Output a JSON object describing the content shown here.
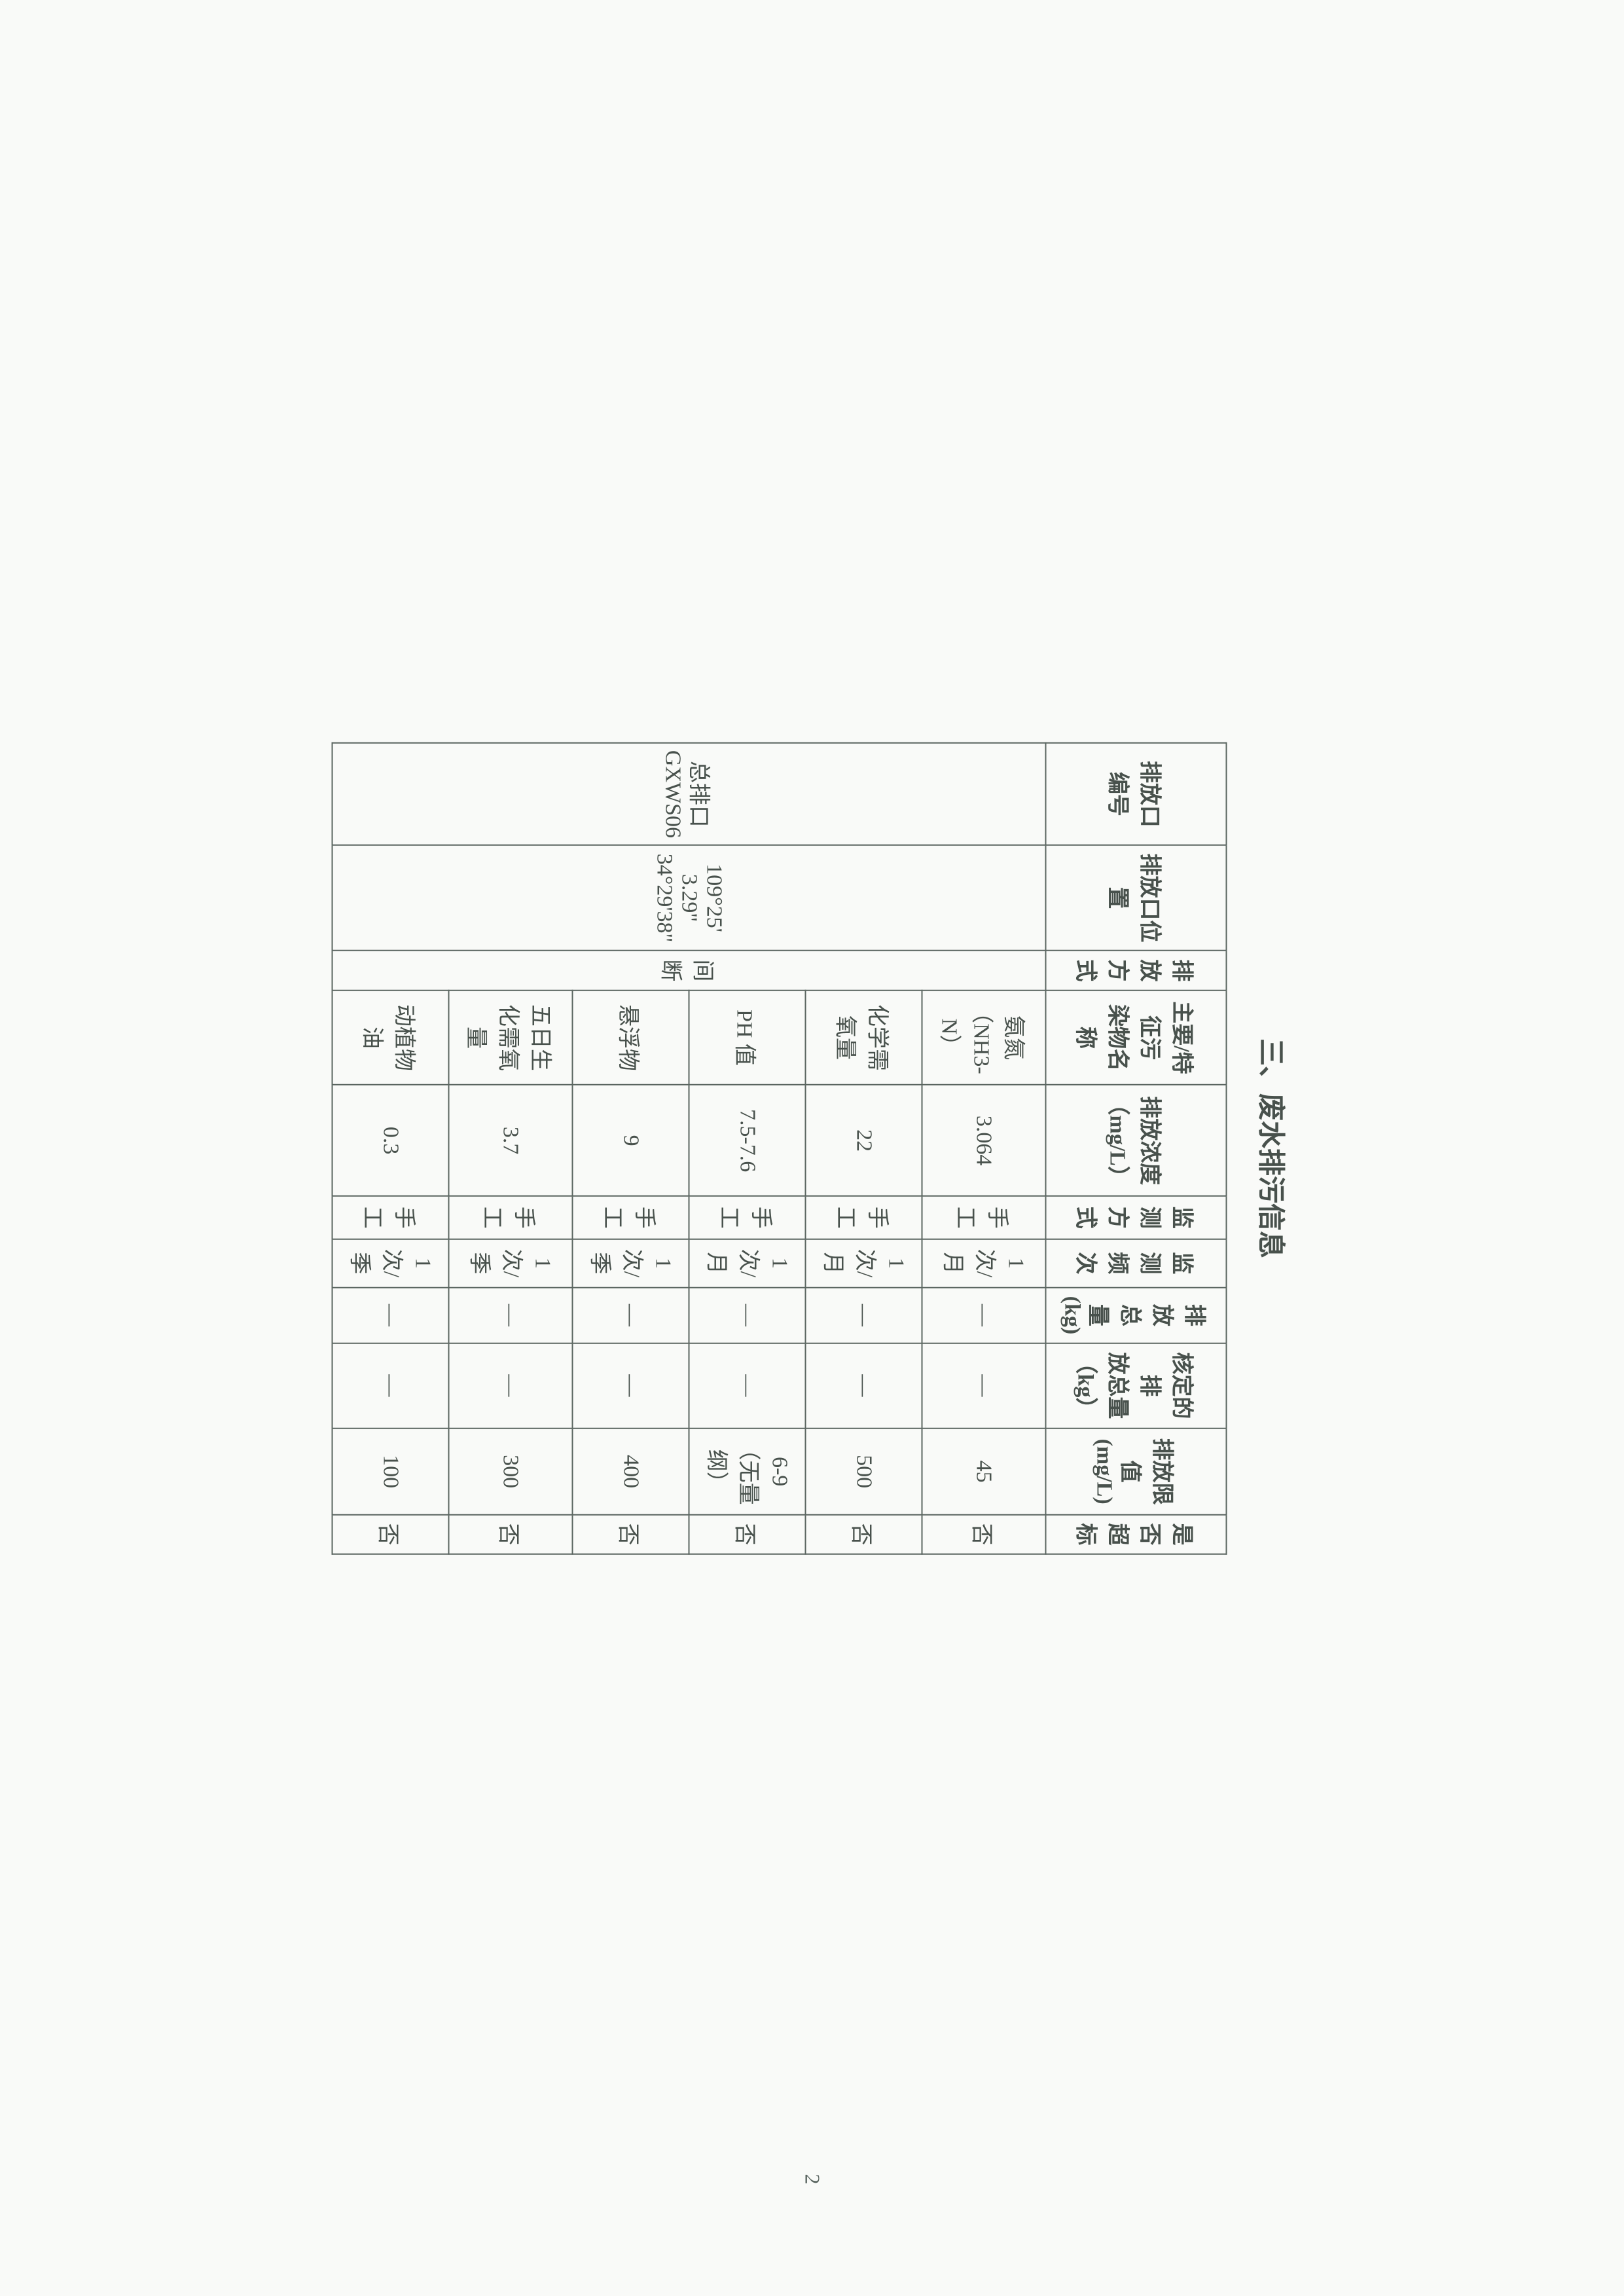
{
  "section_title": "三、废水排污信息",
  "page_number": "2",
  "table": {
    "headers": {
      "outlet_id": "排放口\n编号",
      "location": "排放口位置",
      "method": "排放\n方式",
      "pollutant": "主要/特征污\n染物名称",
      "concentration": "排放浓度\n（mg/L）",
      "monitor_method": "监测方式",
      "frequency": "监测频次",
      "total_emission": "排放总\n量\n(kg)",
      "approved_emission": "核定的排\n放总量\n（kg）",
      "limit": "排放限值 (mg/L)",
      "exceed": "是否\n超标"
    },
    "outlet_id": "总排口\nGXWS06",
    "location": "109°25'\n3.29\"\n34°29'38\"",
    "discharge_method": "间断",
    "rows": [
      {
        "pollutant": "氨氮（NH3-N）",
        "concentration": "3.064",
        "monitor_method": "手工",
        "frequency": "1 次/月",
        "total_emission": "—",
        "approved_emission": "—",
        "limit": "45",
        "exceed": "否"
      },
      {
        "pollutant": "化学需氧量",
        "concentration": "22",
        "monitor_method": "手工",
        "frequency": "1 次/月",
        "total_emission": "—",
        "approved_emission": "—",
        "limit": "500",
        "exceed": "否"
      },
      {
        "pollutant": "PH 值",
        "concentration": "7.5-7.6",
        "monitor_method": "手工",
        "frequency": "1 次/月",
        "total_emission": "—",
        "approved_emission": "—",
        "limit": "6-9（无量纲）",
        "exceed": "否"
      },
      {
        "pollutant": "悬浮物",
        "concentration": "9",
        "monitor_method": "手工",
        "frequency": "1 次/季",
        "total_emission": "—",
        "approved_emission": "—",
        "limit": "400",
        "exceed": "否"
      },
      {
        "pollutant": "五日生化需氧量",
        "concentration": "3.7",
        "monitor_method": "手工",
        "frequency": "1 次/季",
        "total_emission": "—",
        "approved_emission": "—",
        "limit": "300",
        "exceed": "否"
      },
      {
        "pollutant": "动植物油",
        "concentration": "0.3",
        "monitor_method": "手工",
        "frequency": "1 次/季",
        "total_emission": "—",
        "approved_emission": "—",
        "limit": "100",
        "exceed": "否"
      }
    ]
  },
  "styling": {
    "page_bg": "#f9faf8",
    "text_color": "#48514c",
    "border_color": "#5a6560",
    "title_fontsize": 42,
    "cell_fontsize": 34
  }
}
